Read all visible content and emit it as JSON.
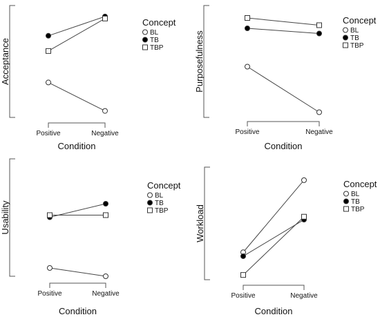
{
  "chart_data": [
    {
      "type": "line",
      "ylabel": "Acceptance",
      "xlabel": "Condition",
      "categories": [
        "Positive",
        "Negative"
      ],
      "ylim": [
        0,
        1
      ],
      "legend": {
        "title": "Concept",
        "position": "right"
      },
      "series": [
        {
          "name": "BL",
          "marker": "open-circle",
          "values": [
            0.31,
            0.03
          ]
        },
        {
          "name": "TB",
          "marker": "filled-circle",
          "values": [
            0.77,
            0.96
          ]
        },
        {
          "name": "TBP",
          "marker": "open-square",
          "values": [
            0.62,
            0.94
          ]
        }
      ]
    },
    {
      "type": "line",
      "ylabel": "Purposefulness",
      "xlabel": "Condition",
      "categories": [
        "Positive",
        "Negative"
      ],
      "ylim": [
        0,
        1
      ],
      "legend": {
        "title": "Concept",
        "position": "right"
      },
      "series": [
        {
          "name": "BL",
          "marker": "open-circle",
          "values": [
            0.49,
            0.05
          ]
        },
        {
          "name": "TB",
          "marker": "filled-circle",
          "values": [
            0.86,
            0.81
          ]
        },
        {
          "name": "TBP",
          "marker": "open-square",
          "values": [
            0.96,
            0.89
          ]
        }
      ]
    },
    {
      "type": "line",
      "ylabel": "Usability",
      "xlabel": "Condition",
      "categories": [
        "Positive",
        "Negative"
      ],
      "ylim": [
        0,
        1
      ],
      "legend": {
        "title": "Concept",
        "position": "right"
      },
      "series": [
        {
          "name": "BL",
          "marker": "open-circle",
          "values": [
            0.08,
            0.0
          ]
        },
        {
          "name": "TB",
          "marker": "filled-circle",
          "values": [
            0.57,
            0.7
          ]
        },
        {
          "name": "TBP",
          "marker": "open-square",
          "values": [
            0.59,
            0.59
          ]
        }
      ]
    },
    {
      "type": "line",
      "ylabel": "Workload",
      "xlabel": "Condition",
      "categories": [
        "Positive",
        "Negative"
      ],
      "ylim": [
        0,
        1
      ],
      "legend": {
        "title": "Concept",
        "position": "right"
      },
      "series": [
        {
          "name": "BL",
          "marker": "open-circle",
          "values": [
            0.25,
            0.98
          ]
        },
        {
          "name": "TB",
          "marker": "filled-circle",
          "values": [
            0.21,
            0.58
          ]
        },
        {
          "name": "TBP",
          "marker": "open-square",
          "values": [
            0.02,
            0.61
          ]
        }
      ]
    }
  ]
}
